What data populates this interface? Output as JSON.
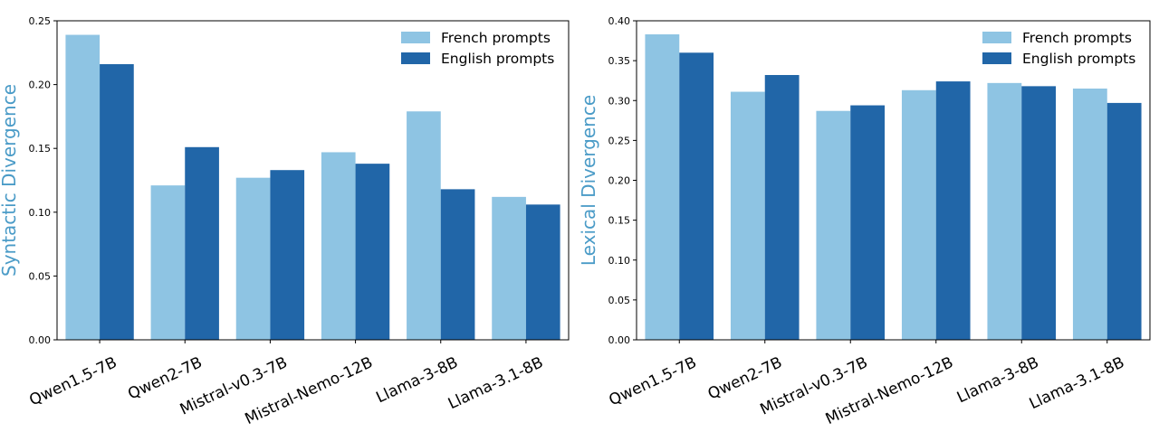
{
  "chart_data": [
    {
      "type": "bar",
      "categories": [
        "Qwen1.5-7B",
        "Qwen2-7B",
        "Mistral-v0.3-7B",
        "Mistral-Nemo-12B",
        "Llama-3-8B",
        "Llama-3.1-8B"
      ],
      "series": [
        {
          "name": "French prompts",
          "color": "#8ec4e3",
          "values": [
            0.239,
            0.121,
            0.127,
            0.147,
            0.179,
            0.112
          ]
        },
        {
          "name": "English prompts",
          "color": "#2166a8",
          "values": [
            0.216,
            0.151,
            0.133,
            0.138,
            0.118,
            0.106
          ]
        }
      ],
      "title": "",
      "xlabel": "",
      "ylabel": "Syntactic Divergence",
      "ylabel_color": "#4a9bc7",
      "ylim": [
        0,
        0.25
      ],
      "yticks": [
        "0.00",
        "0.05",
        "0.10",
        "0.15",
        "0.20",
        "0.25"
      ],
      "grid": false,
      "legend_position": "top-right"
    },
    {
      "type": "bar",
      "categories": [
        "Qwen1.5-7B",
        "Qwen2-7B",
        "Mistral-v0.3-7B",
        "Mistral-Nemo-12B",
        "Llama-3-8B",
        "Llama-3.1-8B"
      ],
      "series": [
        {
          "name": "French prompts",
          "color": "#8ec4e3",
          "values": [
            0.383,
            0.311,
            0.287,
            0.313,
            0.322,
            0.315
          ]
        },
        {
          "name": "English prompts",
          "color": "#2166a8",
          "values": [
            0.36,
            0.332,
            0.294,
            0.324,
            0.318,
            0.297
          ]
        }
      ],
      "title": "",
      "xlabel": "",
      "ylabel": "Lexical Divergence",
      "ylabel_color": "#4a9bc7",
      "ylim": [
        0,
        0.4
      ],
      "yticks": [
        "0.00",
        "0.05",
        "0.10",
        "0.15",
        "0.20",
        "0.25",
        "0.30",
        "0.35",
        "0.40"
      ],
      "grid": false,
      "legend_position": "top-right"
    }
  ]
}
